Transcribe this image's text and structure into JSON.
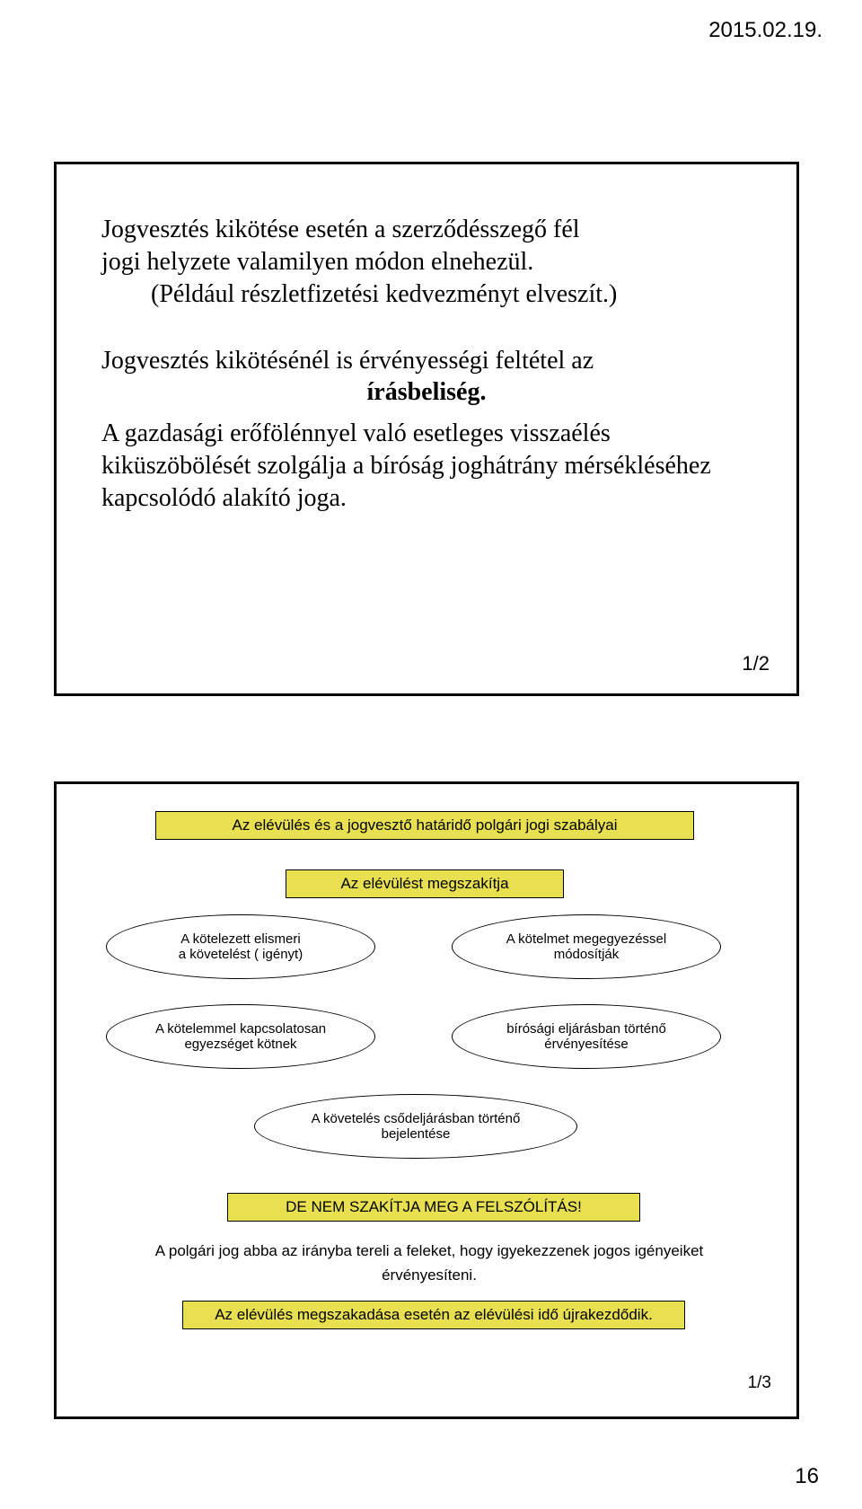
{
  "header": {
    "date": "2015.02.19."
  },
  "footer": {
    "page_number": "16"
  },
  "slide1": {
    "p1_line1": "Jogvesztés kikötése esetén a szerződésszegő fél",
    "p1_line2": "jogi helyzete valamilyen módon elnehezül.",
    "p1_line3": "(Például részletfizetési kedvezményt elveszít.)",
    "p2_line1": "Jogvesztés kikötésénél is érvényességi feltétel az",
    "p2_bold": "írásbeliség.",
    "p3": "A gazdasági erőfölénnyel való esetleges visszaélés kiküszöbölését szolgálja a bíróság joghátrány mérsékléséhez kapcsolódó alakító joga.",
    "slide_page": "1/2"
  },
  "slide2": {
    "title1": "Az elévülés és a jogvesztő határidő polgári jogi szabályai",
    "title2": "Az elévülést megszakítja",
    "ellipses": {
      "e1_l1": "A kötelezett elismeri",
      "e1_l2": "a követelést ( igényt)",
      "e2_l1": "A kötelmet megegyezéssel",
      "e2_l2": "módosítják",
      "e3_l1": "A kötelemmel kapcsolatosan",
      "e3_l2": "egyezséget kötnek",
      "e4_l1": "bírósági eljárásban történő",
      "e4_l2": "érvényesítése",
      "e5_l1": "A követelés csődeljárásban történő",
      "e5_l2": "bejelentése"
    },
    "warn": "DE NEM SZAKÍTJA MEG A FELSZÓLÍTÁS!",
    "note_l1": "A polgári jog abba az irányba tereli a feleket, hogy igyekezzenek jogos igényeiket",
    "note_l2": "érvényesíteni.",
    "final": "Az elévülés megszakadása esetén az elévülési idő újrakezdődik.",
    "slide_page": "1/3"
  },
  "colors": {
    "yellow_box_bg": "#e8e050",
    "border": "#000000",
    "page_bg": "#ffffff",
    "text": "#000000"
  }
}
